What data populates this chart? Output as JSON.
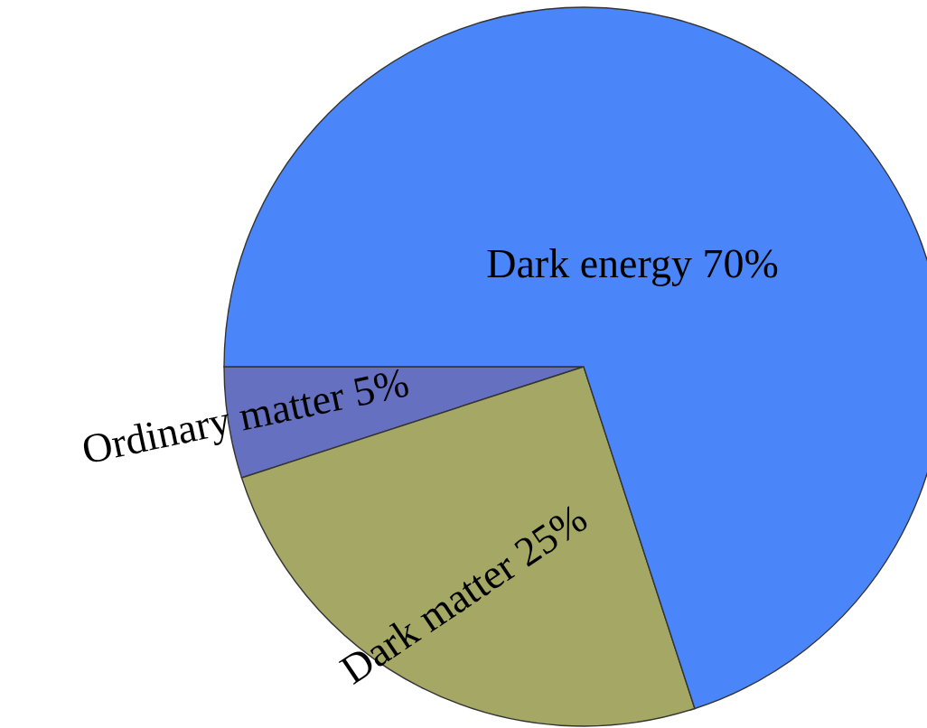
{
  "chart_data": {
    "type": "pie",
    "categories": [
      "Ordinary matter",
      "Dark matter",
      "Dark energy"
    ],
    "values": [
      5,
      25,
      70
    ],
    "value_labels": [
      "5%",
      "25%",
      "70%"
    ],
    "colors": [
      "#6670c0",
      "#a5a864",
      "#4a86fa"
    ]
  }
}
